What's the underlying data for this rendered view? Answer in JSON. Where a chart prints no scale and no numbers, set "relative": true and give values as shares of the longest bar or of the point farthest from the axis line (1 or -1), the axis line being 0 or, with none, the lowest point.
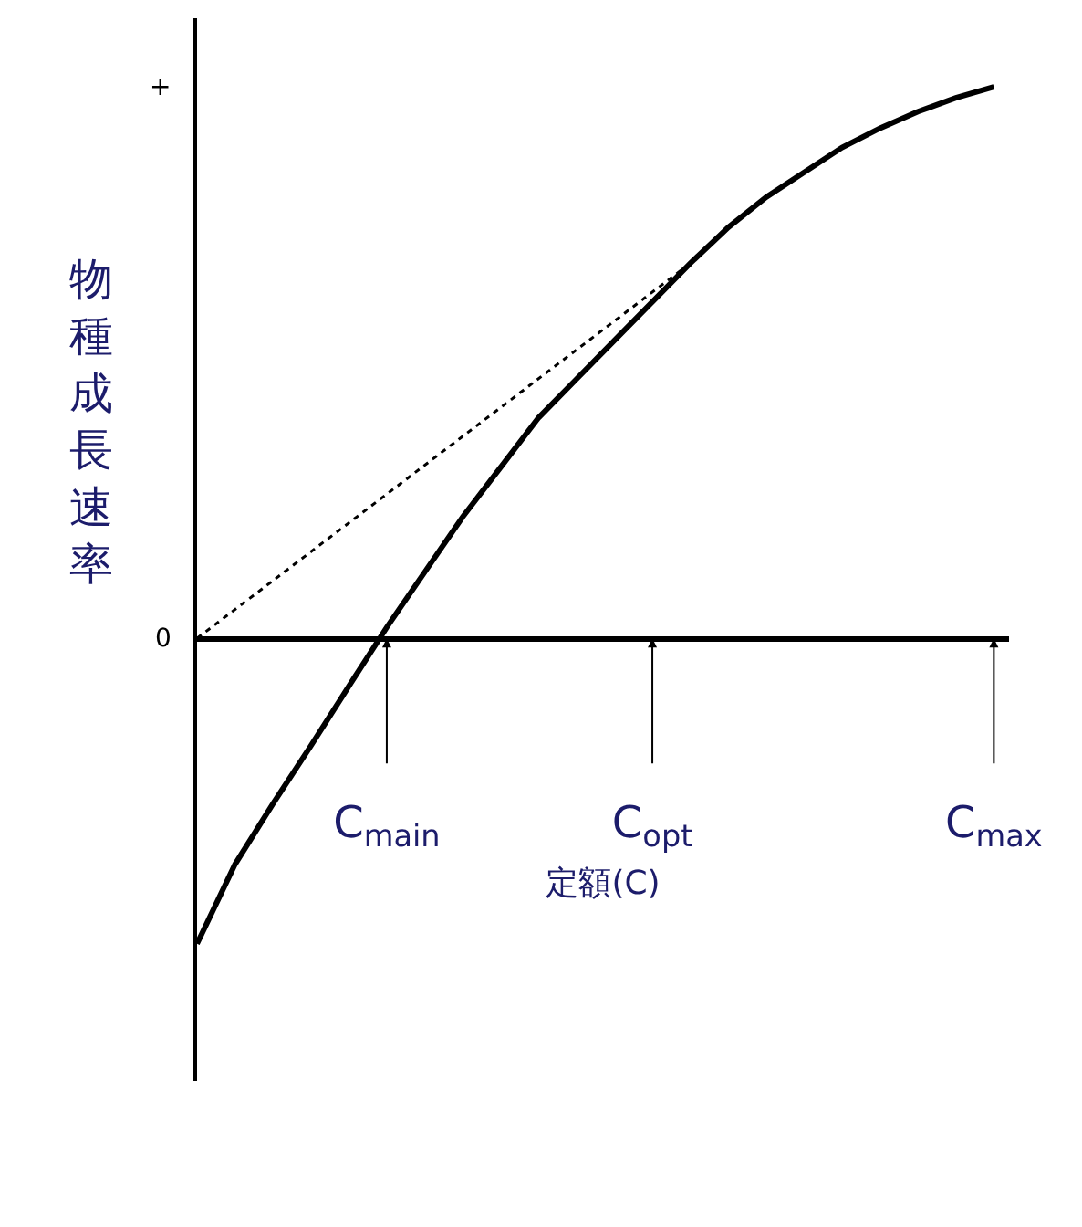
{
  "chart_data": {
    "type": "line",
    "relative": true,
    "ylabel": "物種成長速率",
    "xlabel": "定額(C)",
    "categories": [
      null,
      null,
      null,
      null,
      null,
      "C$_{main}$",
      null,
      null,
      null,
      null,
      null,
      null,
      "C$_{opt}$",
      null,
      null,
      null,
      null,
      null,
      null,
      null,
      null,
      "C$_{max}$"
    ],
    "series": [
      {
        "type": "line",
        "color": "#000000",
        "line_style": "solid",
        "values": [
          -0.554,
          -0.41,
          -0.3,
          -0.195,
          -0.087,
          0.02,
          0.12,
          0.22,
          0.31,
          0.4,
          0.47,
          0.54,
          0.61,
          0.68,
          0.745,
          0.8,
          0.845,
          0.89,
          0.925,
          0.955,
          0.98,
          1
        ]
      },
      {
        "type": "line",
        "color": "#000000",
        "line_style": "dotted",
        "values": [
          0,
          null,
          null,
          null,
          null,
          null,
          null,
          null,
          null,
          null,
          null,
          null,
          null,
          0.68,
          null,
          null,
          null,
          null,
          null,
          null,
          null,
          null
        ]
      }
    ],
    "annotations": [
      "+",
      "0"
    ],
    "marker": "none",
    "grid": false,
    "tick_labels": "x"
  }
}
